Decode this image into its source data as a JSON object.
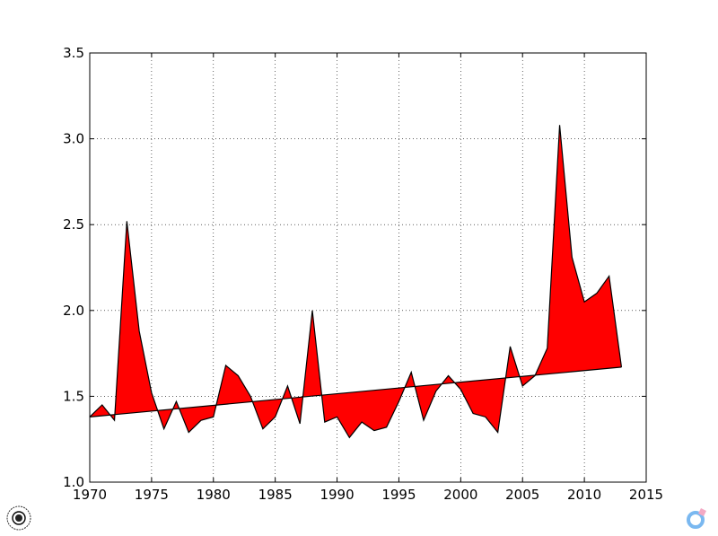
{
  "chart_data": {
    "type": "area",
    "title": "",
    "xlabel": "",
    "ylabel": "",
    "xlim": [
      1970,
      2015
    ],
    "ylim": [
      1.0,
      3.5
    ],
    "grid": true,
    "x_ticks": [
      1970,
      1975,
      1980,
      1985,
      1990,
      1995,
      2000,
      2005,
      2010,
      2015
    ],
    "y_ticks": [
      1.0,
      1.5,
      2.0,
      2.5,
      3.0,
      3.5
    ],
    "x_tick_labels": [
      "1970",
      "1975",
      "1980",
      "1985",
      "1990",
      "1995",
      "2000",
      "2005",
      "2010",
      "2015"
    ],
    "y_tick_labels": [
      "1.0",
      "1.5",
      "2.0",
      "2.5",
      "3.0",
      "3.5"
    ],
    "fill_color": "#ff0000",
    "line_color": "#000000",
    "series": [
      {
        "x": [
          1970,
          1971,
          1972,
          1973,
          1974,
          1975,
          1976,
          1977,
          1978,
          1979,
          1980,
          1981,
          1982,
          1983,
          1984,
          1985,
          1986,
          1987,
          1988,
          1989,
          1990,
          1991,
          1992,
          1993,
          1994,
          1995,
          1996,
          1997,
          1998,
          1999,
          2000,
          2001,
          2002,
          2003,
          2004,
          2005,
          2006,
          2007,
          2008,
          2009,
          2010,
          2011,
          2012,
          2013
        ],
        "values": [
          1.38,
          1.45,
          1.36,
          2.52,
          1.88,
          1.52,
          1.31,
          1.47,
          1.29,
          1.36,
          1.38,
          1.68,
          1.62,
          1.5,
          1.31,
          1.38,
          1.56,
          1.34,
          2.0,
          1.35,
          1.38,
          1.26,
          1.35,
          1.3,
          1.32,
          1.47,
          1.64,
          1.36,
          1.53,
          1.62,
          1.54,
          1.4,
          1.38,
          1.29,
          1.79,
          1.56,
          1.62,
          1.78,
          3.08,
          2.31,
          2.05,
          2.1,
          2.2,
          1.67
        ]
      },
      {
        "x": [
          1970,
          2013
        ],
        "values": [
          1.38,
          1.67
        ]
      }
    ]
  }
}
